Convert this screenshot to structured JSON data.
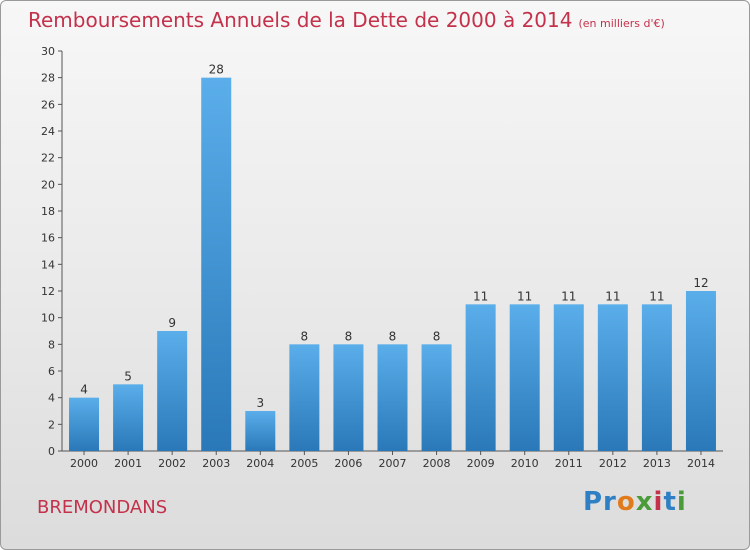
{
  "header": {
    "title": "Remboursements Annuels de la Dette de 2000 à 2014",
    "subtitle": "(en milliers d'€)"
  },
  "footer": {
    "city": "BREMONDANS",
    "logo": "Proxiti"
  },
  "colors": {
    "title": "#c4314b",
    "bar_light": "#5aaeea",
    "bar_dark": "#2a78b8"
  },
  "chart_data": {
    "type": "bar",
    "title": "Remboursements Annuels de la Dette de 2000 à 2014",
    "subtitle": "(en milliers d'€)",
    "xlabel": "",
    "ylabel": "",
    "categories": [
      "2000",
      "2001",
      "2002",
      "2003",
      "2004",
      "2005",
      "2006",
      "2007",
      "2008",
      "2009",
      "2010",
      "2011",
      "2012",
      "2013",
      "2014"
    ],
    "values": [
      4,
      5,
      9,
      28,
      3,
      8,
      8,
      8,
      8,
      11,
      11,
      11,
      11,
      11,
      12
    ],
    "ylim": [
      0,
      30
    ],
    "yticks": [
      0,
      2,
      4,
      6,
      8,
      10,
      12,
      14,
      16,
      18,
      20,
      22,
      24,
      26,
      28,
      30
    ],
    "grid": false,
    "legend": "none"
  }
}
